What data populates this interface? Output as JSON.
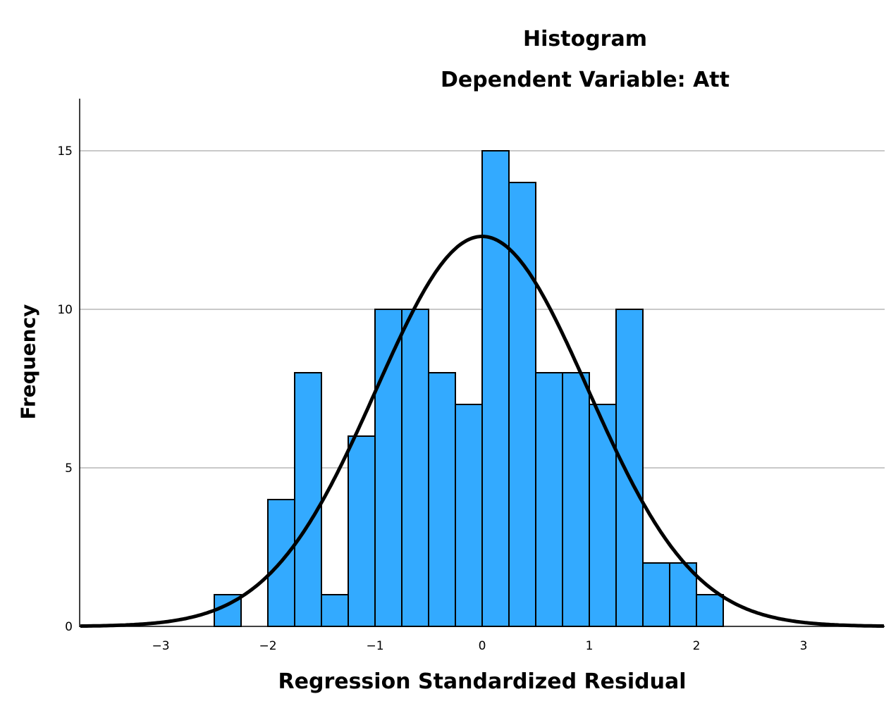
{
  "chart_data": {
    "type": "bar",
    "title": "Histogram",
    "subtitle": "Dependent Variable: Att",
    "xlabel": "Regression Standardized Residual",
    "ylabel": "Frequency",
    "xlim": [
      -3.75,
      3.75
    ],
    "ylim": [
      0,
      16.7
    ],
    "x_ticks": [
      -3,
      -2,
      -1,
      0,
      1,
      2,
      3
    ],
    "y_ticks": [
      0,
      5,
      10,
      15
    ],
    "grid": "horizontal",
    "bin_width": 0.25,
    "bins": [
      {
        "start": -2.5,
        "value": 1
      },
      {
        "start": -2.25,
        "value": 0
      },
      {
        "start": -2.0,
        "value": 4
      },
      {
        "start": -1.75,
        "value": 8
      },
      {
        "start": -1.5,
        "value": 1
      },
      {
        "start": -1.25,
        "value": 6
      },
      {
        "start": -1.0,
        "value": 10
      },
      {
        "start": -0.75,
        "value": 10
      },
      {
        "start": -0.5,
        "value": 8
      },
      {
        "start": -0.25,
        "value": 7
      },
      {
        "start": 0.0,
        "value": 15
      },
      {
        "start": 0.25,
        "value": 14
      },
      {
        "start": 0.5,
        "value": 8
      },
      {
        "start": 0.75,
        "value": 8
      },
      {
        "start": 1.0,
        "value": 7
      },
      {
        "start": 1.25,
        "value": 10
      },
      {
        "start": 1.5,
        "value": 2
      },
      {
        "start": 1.75,
        "value": 2
      },
      {
        "start": 2.0,
        "value": 1
      }
    ],
    "normal_curve": {
      "mean": 0,
      "sd": 0.99,
      "peak": 12.3
    },
    "bar_color": "#33aaff",
    "curve_color": "#000000"
  }
}
